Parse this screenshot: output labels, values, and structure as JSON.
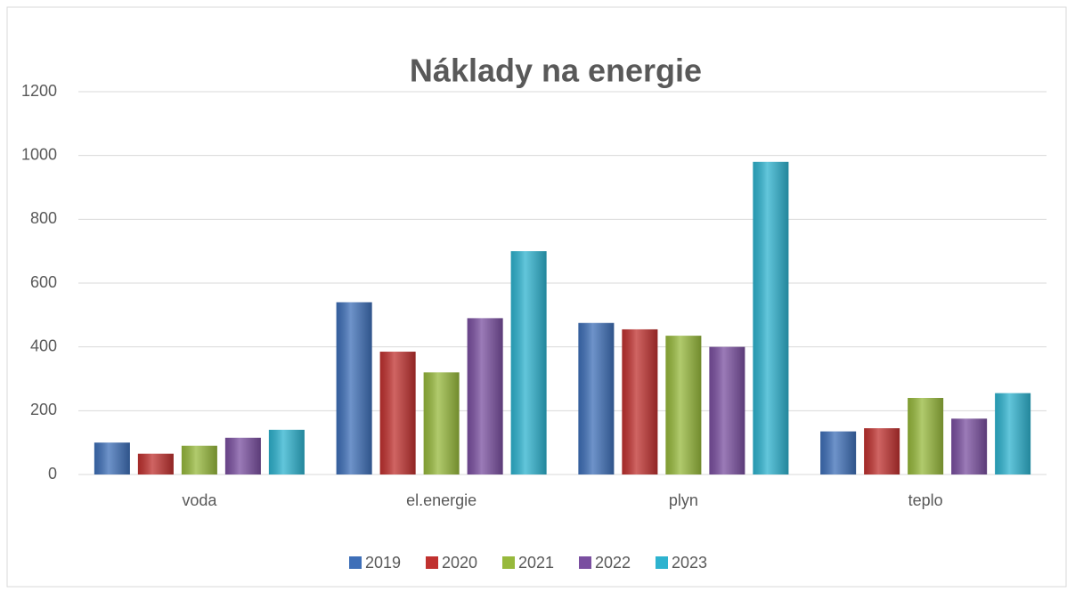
{
  "chart_data": {
    "type": "bar",
    "title": "Náklady na energie",
    "categories": [
      "voda",
      "el.energie",
      "plyn",
      "teplo"
    ],
    "series": [
      {
        "name": "2019",
        "color": "#3e6fb8",
        "values": [
          100,
          540,
          475,
          135
        ]
      },
      {
        "name": "2020",
        "color": "#c0312f",
        "values": [
          65,
          385,
          455,
          145
        ]
      },
      {
        "name": "2021",
        "color": "#97b93c",
        "values": [
          90,
          320,
          435,
          240
        ]
      },
      {
        "name": "2022",
        "color": "#7a4fa0",
        "values": [
          115,
          490,
          400,
          175
        ]
      },
      {
        "name": "2023",
        "color": "#2eb3cf",
        "values": [
          140,
          700,
          980,
          255
        ]
      }
    ],
    "ylim": [
      0,
      1200
    ],
    "yticks": [
      0,
      200,
      400,
      600,
      800,
      1000,
      1200
    ],
    "grid": true,
    "legend": "bottom"
  }
}
